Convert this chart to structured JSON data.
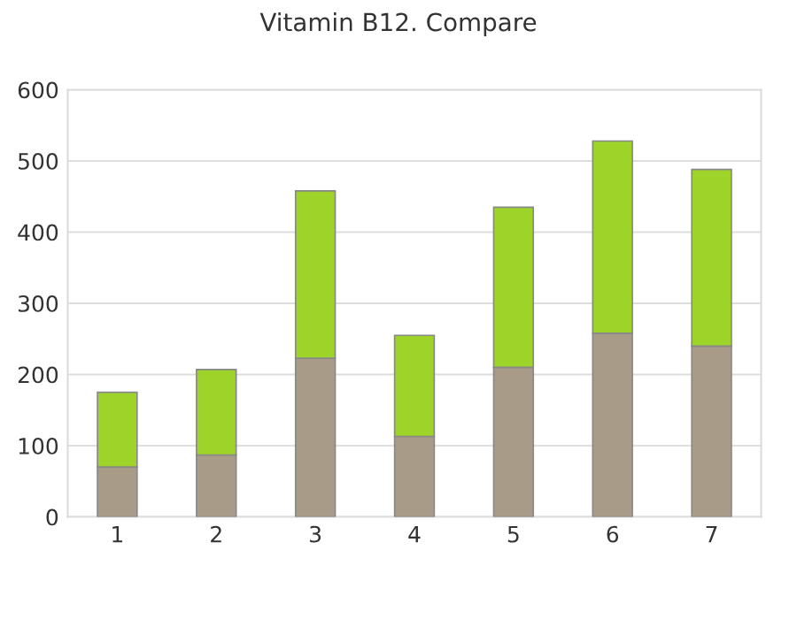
{
  "chart_data": {
    "type": "bar",
    "title": "Vitamin B12. Compare",
    "stacked": true,
    "categories": [
      "1",
      "2",
      "3",
      "4",
      "5",
      "6",
      "7"
    ],
    "series": [
      {
        "color": "#a89c88",
        "values": [
          70,
          87,
          223,
          113,
          210,
          258,
          240
        ]
      },
      {
        "color": "#9ed42a",
        "values": [
          105,
          120,
          235,
          142,
          225,
          270,
          248
        ]
      }
    ],
    "ylim": [
      0,
      600
    ],
    "yticks": [
      0,
      100,
      200,
      300,
      400,
      500,
      600
    ],
    "grid": "y",
    "legend": false
  }
}
